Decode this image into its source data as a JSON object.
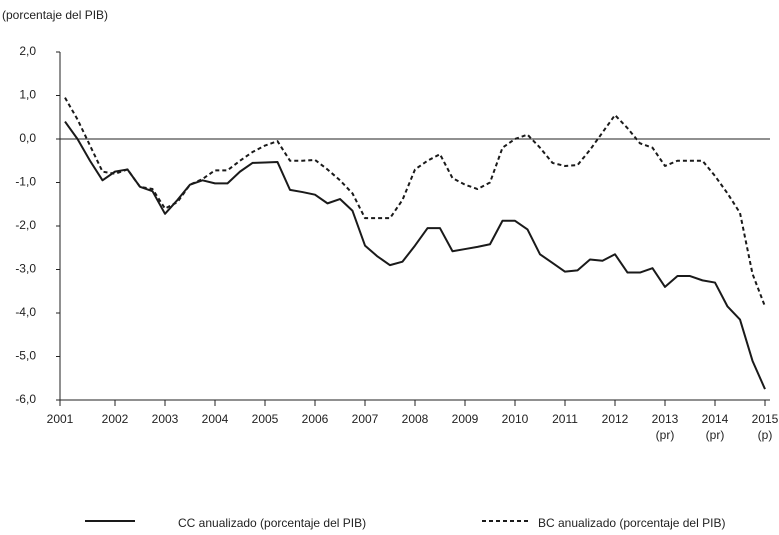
{
  "chart_data": {
    "type": "line",
    "unit_label": "(porcentaje del PIB)",
    "categories": [
      "2001",
      null,
      null,
      null,
      "2002",
      null,
      null,
      null,
      "2003",
      null,
      null,
      null,
      "2004",
      null,
      null,
      null,
      "2005",
      null,
      null,
      null,
      "2006",
      null,
      null,
      null,
      "2007",
      null,
      null,
      null,
      "2008",
      null,
      null,
      null,
      "2009",
      null,
      null,
      null,
      "2010",
      null,
      null,
      null,
      "2011",
      null,
      null,
      null,
      "2012",
      null,
      null,
      null,
      "2013 (pr)",
      null,
      null,
      null,
      "2014 (pr)",
      null,
      null,
      null,
      "2015 (p)"
    ],
    "series": [
      {
        "name": "CC anualizado (porcentaje del PIB)",
        "color": "#1a1a1a",
        "dash": false,
        "values": [
          0.4,
          0.0,
          -0.5,
          -0.95,
          -0.75,
          -0.7,
          -1.1,
          -1.2,
          -1.72,
          -1.4,
          -1.05,
          -0.95,
          -1.02,
          -1.02,
          -0.75,
          -0.55,
          -0.54,
          -0.53,
          -1.17,
          -1.22,
          -1.28,
          -1.48,
          -1.38,
          -1.65,
          -2.45,
          -2.7,
          -2.9,
          -2.82,
          -2.45,
          -2.05,
          -2.05,
          -2.58,
          -2.53,
          -2.48,
          -2.42,
          -1.88,
          -1.88,
          -2.08,
          -2.65,
          -2.85,
          -3.05,
          -3.02,
          -2.77,
          -2.8,
          -2.65,
          -3.07,
          -3.07,
          -2.97,
          -3.4,
          -3.15,
          -3.15,
          -3.25,
          -3.3,
          -3.85,
          -4.15,
          -5.1,
          -5.75
        ]
      },
      {
        "name": "BC anualizado (porcentaje del PIB)",
        "color": "#1a1a1a",
        "dash": true,
        "values": [
          0.95,
          0.45,
          -0.15,
          -0.75,
          -0.8,
          -0.7,
          -1.1,
          -1.15,
          -1.6,
          -1.45,
          -1.05,
          -0.92,
          -0.72,
          -0.72,
          -0.5,
          -0.3,
          -0.15,
          -0.05,
          -0.5,
          -0.5,
          -0.48,
          -0.7,
          -0.95,
          -1.25,
          -1.82,
          -1.82,
          -1.82,
          -1.4,
          -0.7,
          -0.5,
          -0.35,
          -0.9,
          -1.05,
          -1.15,
          -1.0,
          -0.2,
          0.0,
          0.1,
          -0.2,
          -0.55,
          -0.62,
          -0.6,
          -0.25,
          0.15,
          0.55,
          0.25,
          -0.1,
          -0.2,
          -0.62,
          -0.5,
          -0.5,
          -0.5,
          -0.85,
          -1.25,
          -1.7,
          -3.1,
          -3.85
        ]
      }
    ],
    "ylim": [
      -6,
      2
    ],
    "yticks": [
      {
        "value": 2,
        "label": "2,0"
      },
      {
        "value": 1,
        "label": "1,0"
      },
      {
        "value": 0,
        "label": "0,0"
      },
      {
        "value": -1,
        "label": "-1,0"
      },
      {
        "value": -2,
        "label": "-2,0"
      },
      {
        "value": -3,
        "label": "-3,0"
      },
      {
        "value": -4,
        "label": "-4,0"
      },
      {
        "value": -5,
        "label": "-5,0"
      },
      {
        "value": -6,
        "label": "-6,0"
      }
    ],
    "zero_line": true,
    "grid": false
  }
}
